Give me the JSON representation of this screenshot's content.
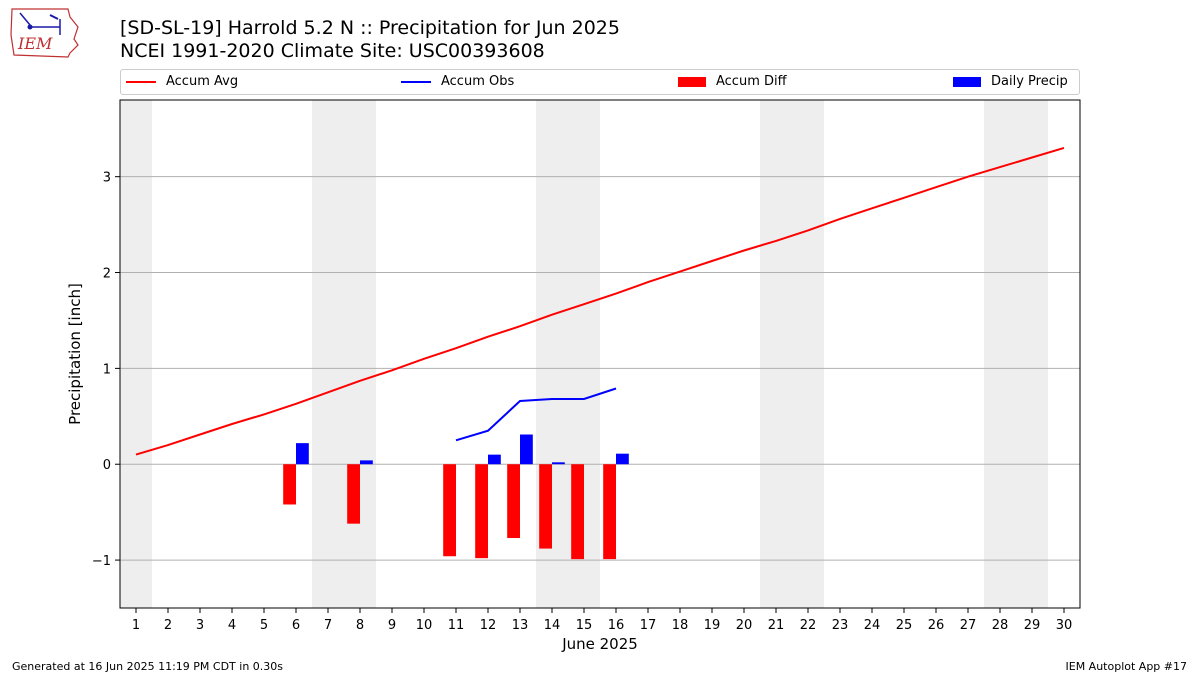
{
  "header": {
    "title_line1": "[SD-SL-19] Harrold 5.2 N :: Precipitation for Jun 2025",
    "title_line2": "NCEI 1991-2020 Climate Site: USC00393608",
    "logo_text": "IEM"
  },
  "footer": {
    "generated": "Generated at 16 Jun 2025 11:19 PM CDT in 0.30s",
    "app": "IEM Autoplot App #17"
  },
  "colors": {
    "accum_avg": "#ff0000",
    "accum_obs": "#0000ff",
    "accum_diff": "#ff0000",
    "daily_precip": "#0000ff",
    "weekend_shade": "#eeeeee",
    "grid": "#b0b0b0"
  },
  "chart_data": {
    "type": "bar",
    "xlabel": "June 2025",
    "ylabel": "Precipitation [inch]",
    "xlim": [
      0.5,
      30.5
    ],
    "ylim": [
      -1.5,
      3.8
    ],
    "yticks": [
      -1,
      0,
      1,
      2,
      3
    ],
    "ytick_labels": [
      "−1",
      "0",
      "1",
      "2",
      "3"
    ],
    "xticks": [
      1,
      2,
      3,
      4,
      5,
      6,
      7,
      8,
      9,
      10,
      11,
      12,
      13,
      14,
      15,
      16,
      17,
      18,
      19,
      20,
      21,
      22,
      23,
      24,
      25,
      26,
      27,
      28,
      29,
      30
    ],
    "grid": "horizontal",
    "legend_position": "top",
    "weekend_days": [
      [
        1,
        1
      ],
      [
        7,
        8
      ],
      [
        14,
        15
      ],
      [
        21,
        22
      ],
      [
        28,
        29
      ]
    ],
    "legend": [
      {
        "label": "Accum Avg",
        "kind": "line",
        "color": "#ff0000"
      },
      {
        "label": "Accum Obs",
        "kind": "line",
        "color": "#0000ff"
      },
      {
        "label": "Accum Diff",
        "kind": "bar",
        "color": "#ff0000"
      },
      {
        "label": "Daily Precip",
        "kind": "bar",
        "color": "#0000ff"
      }
    ],
    "series": [
      {
        "name": "Accum Avg",
        "type": "line",
        "x": [
          1,
          2,
          3,
          4,
          5,
          6,
          7,
          8,
          9,
          10,
          11,
          12,
          13,
          14,
          15,
          16,
          17,
          18,
          19,
          20,
          21,
          22,
          23,
          24,
          25,
          26,
          27,
          28,
          29,
          30
        ],
        "values": [
          0.1,
          0.2,
          0.31,
          0.42,
          0.52,
          0.63,
          0.75,
          0.87,
          0.98,
          1.1,
          1.21,
          1.33,
          1.44,
          1.56,
          1.67,
          1.78,
          1.9,
          2.01,
          2.12,
          2.23,
          2.33,
          2.44,
          2.56,
          2.67,
          2.78,
          2.89,
          3.0,
          3.1,
          3.2,
          3.3
        ]
      },
      {
        "name": "Accum Obs",
        "type": "line",
        "x": [
          11,
          12,
          13,
          14,
          15,
          16
        ],
        "values": [
          0.25,
          0.35,
          0.66,
          0.68,
          0.68,
          0.79
        ]
      },
      {
        "name": "Accum Diff",
        "type": "bar",
        "x": [
          6,
          8,
          11,
          12,
          13,
          14,
          15,
          16
        ],
        "values": [
          -0.42,
          -0.62,
          -0.96,
          -0.98,
          -0.77,
          -0.88,
          -0.99,
          -0.99
        ]
      },
      {
        "name": "Daily Precip",
        "type": "bar",
        "x": [
          6,
          8,
          12,
          13,
          14,
          16
        ],
        "values": [
          0.22,
          0.04,
          0.1,
          0.31,
          0.02,
          0.11
        ]
      }
    ]
  }
}
